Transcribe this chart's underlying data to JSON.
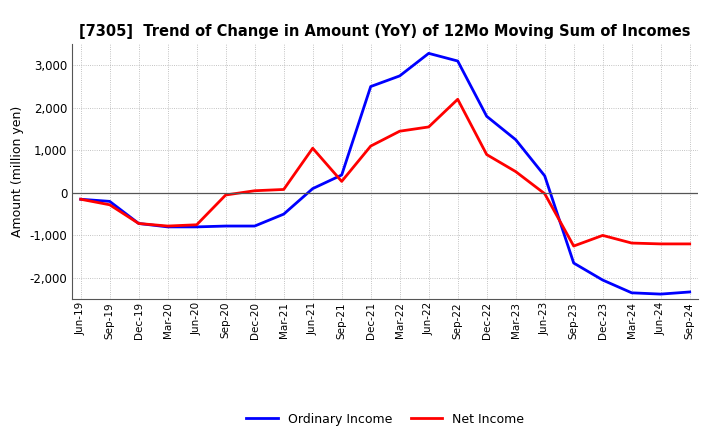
{
  "title": "[7305]  Trend of Change in Amount (YoY) of 12Mo Moving Sum of Incomes",
  "ylabel": "Amount (million yen)",
  "x_labels": [
    "Jun-19",
    "Sep-19",
    "Dec-19",
    "Mar-20",
    "Jun-20",
    "Sep-20",
    "Dec-20",
    "Mar-21",
    "Jun-21",
    "Sep-21",
    "Dec-21",
    "Mar-22",
    "Jun-22",
    "Sep-22",
    "Dec-22",
    "Mar-23",
    "Jun-23",
    "Sep-23",
    "Dec-23",
    "Mar-24",
    "Jun-24",
    "Sep-24"
  ],
  "ordinary_income": [
    -150,
    -200,
    -720,
    -800,
    -800,
    -780,
    -780,
    -500,
    100,
    420,
    2500,
    2750,
    3280,
    3100,
    1800,
    1250,
    400,
    -1650,
    -2050,
    -2350,
    -2380,
    -2330
  ],
  "net_income": [
    -150,
    -280,
    -720,
    -780,
    -750,
    -50,
    50,
    80,
    1050,
    270,
    1100,
    1450,
    1550,
    2200,
    900,
    500,
    -20,
    -1250,
    -1000,
    -1180,
    -1200,
    -1200
  ],
  "ordinary_color": "#0000ff",
  "net_color": "#ff0000",
  "ylim": [
    -2500,
    3500
  ],
  "yticks": [
    -2000,
    -1000,
    0,
    1000,
    2000,
    3000
  ],
  "background_color": "#ffffff",
  "grid_color": "#b0b0b0",
  "legend_labels": [
    "Ordinary Income",
    "Net Income"
  ]
}
